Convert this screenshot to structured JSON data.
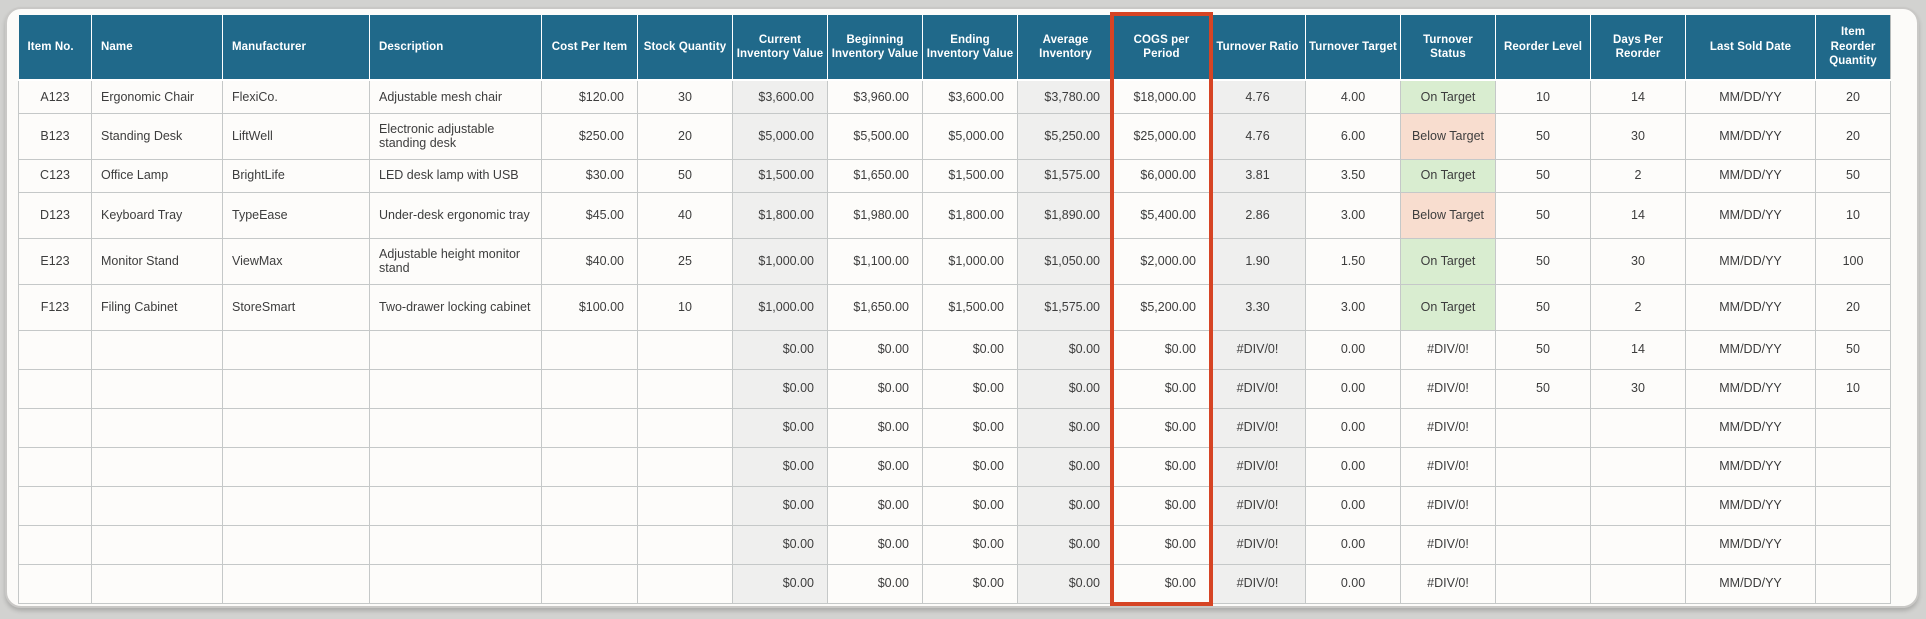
{
  "colors": {
    "header_background": "#20698a",
    "highlight_border": "#d64424",
    "on_target_fill": "#d9edd0",
    "below_target_fill": "#f8ddcf",
    "striped_column_fill": "#efefee"
  },
  "table": {
    "highlighted_column": "COGS per Period",
    "columns": [
      {
        "id": "item-no",
        "label": "Item No."
      },
      {
        "id": "name",
        "label": "Name"
      },
      {
        "id": "manufacturer",
        "label": "Manufacturer"
      },
      {
        "id": "description",
        "label": "Description"
      },
      {
        "id": "cost-per-item",
        "label": "Cost Per Item"
      },
      {
        "id": "stock-quantity",
        "label": "Stock Quantity"
      },
      {
        "id": "current-inventory-value",
        "label": "Current Inventory Value"
      },
      {
        "id": "beginning-inventory-value",
        "label": "Beginning Inventory Value"
      },
      {
        "id": "ending-inventory-value",
        "label": "Ending Inventory Value"
      },
      {
        "id": "average-inventory",
        "label": "Average Inventory"
      },
      {
        "id": "cogs-per-period",
        "label": "COGS per Period"
      },
      {
        "id": "turnover-ratio",
        "label": "Turnover Ratio"
      },
      {
        "id": "turnover-target",
        "label": "Turnover Target"
      },
      {
        "id": "turnover-status",
        "label": "Turnover Status"
      },
      {
        "id": "reorder-level",
        "label": "Reorder Level"
      },
      {
        "id": "days-per-reorder",
        "label": "Days Per Reorder"
      },
      {
        "id": "last-sold-date",
        "label": "Last Sold Date"
      },
      {
        "id": "item-reorder-quantity",
        "label": "Item Reorder Quantity"
      }
    ],
    "rows": [
      {
        "cells": [
          "A123",
          "Ergonomic Chair",
          "FlexiCo.",
          "Adjustable mesh chair",
          "$120.00",
          "30",
          "$3,600.00",
          "$3,960.00",
          "$3,600.00",
          "$3,780.00",
          "$18,000.00",
          "4.76",
          "4.00",
          "On Target",
          "10",
          "14",
          "MM/DD/YY",
          "20"
        ]
      },
      {
        "cells": [
          "B123",
          "Standing Desk",
          "LiftWell",
          "Electronic adjustable standing desk",
          "$250.00",
          "20",
          "$5,000.00",
          "$5,500.00",
          "$5,000.00",
          "$5,250.00",
          "$25,000.00",
          "4.76",
          "6.00",
          "Below Target",
          "50",
          "30",
          "MM/DD/YY",
          "20"
        ]
      },
      {
        "cells": [
          "C123",
          "Office Lamp",
          "BrightLife",
          "LED desk lamp with USB",
          "$30.00",
          "50",
          "$1,500.00",
          "$1,650.00",
          "$1,500.00",
          "$1,575.00",
          "$6,000.00",
          "3.81",
          "3.50",
          "On Target",
          "50",
          "2",
          "MM/DD/YY",
          "50"
        ]
      },
      {
        "cells": [
          "D123",
          "Keyboard Tray",
          "TypeEase",
          "Under-desk ergonomic tray",
          "$45.00",
          "40",
          "$1,800.00",
          "$1,980.00",
          "$1,800.00",
          "$1,890.00",
          "$5,400.00",
          "2.86",
          "3.00",
          "Below Target",
          "50",
          "14",
          "MM/DD/YY",
          "10"
        ]
      },
      {
        "cells": [
          "E123",
          "Monitor Stand",
          "ViewMax",
          "Adjustable height monitor stand",
          "$40.00",
          "25",
          "$1,000.00",
          "$1,100.00",
          "$1,000.00",
          "$1,050.00",
          "$2,000.00",
          "1.90",
          "1.50",
          "On Target",
          "50",
          "30",
          "MM/DD/YY",
          "100"
        ]
      },
      {
        "cells": [
          "F123",
          "Filing Cabinet",
          "StoreSmart",
          "Two-drawer locking cabinet",
          "$100.00",
          "10",
          "$1,000.00",
          "$1,650.00",
          "$1,500.00",
          "$1,575.00",
          "$5,200.00",
          "3.30",
          "3.00",
          "On Target",
          "50",
          "2",
          "MM/DD/YY",
          "20"
        ]
      },
      {
        "cells": [
          "",
          "",
          "",
          "",
          "",
          "",
          "$0.00",
          "$0.00",
          "$0.00",
          "$0.00",
          "$0.00",
          "#DIV/0!",
          "0.00",
          "#DIV/0!",
          "50",
          "14",
          "MM/DD/YY",
          "50"
        ]
      },
      {
        "cells": [
          "",
          "",
          "",
          "",
          "",
          "",
          "$0.00",
          "$0.00",
          "$0.00",
          "$0.00",
          "$0.00",
          "#DIV/0!",
          "0.00",
          "#DIV/0!",
          "50",
          "30",
          "MM/DD/YY",
          "10"
        ]
      },
      {
        "cells": [
          "",
          "",
          "",
          "",
          "",
          "",
          "$0.00",
          "$0.00",
          "$0.00",
          "$0.00",
          "$0.00",
          "#DIV/0!",
          "0.00",
          "#DIV/0!",
          "",
          "",
          "MM/DD/YY",
          ""
        ]
      },
      {
        "cells": [
          "",
          "",
          "",
          "",
          "",
          "",
          "$0.00",
          "$0.00",
          "$0.00",
          "$0.00",
          "$0.00",
          "#DIV/0!",
          "0.00",
          "#DIV/0!",
          "",
          "",
          "MM/DD/YY",
          ""
        ]
      },
      {
        "cells": [
          "",
          "",
          "",
          "",
          "",
          "",
          "$0.00",
          "$0.00",
          "$0.00",
          "$0.00",
          "$0.00",
          "#DIV/0!",
          "0.00",
          "#DIV/0!",
          "",
          "",
          "MM/DD/YY",
          ""
        ]
      },
      {
        "cells": [
          "",
          "",
          "",
          "",
          "",
          "",
          "$0.00",
          "$0.00",
          "$0.00",
          "$0.00",
          "$0.00",
          "#DIV/0!",
          "0.00",
          "#DIV/0!",
          "",
          "",
          "MM/DD/YY",
          ""
        ]
      },
      {
        "cells": [
          "",
          "",
          "",
          "",
          "",
          "",
          "$0.00",
          "$0.00",
          "$0.00",
          "$0.00",
          "$0.00",
          "#DIV/0!",
          "0.00",
          "#DIV/0!",
          "",
          "",
          "MM/DD/YY",
          ""
        ]
      }
    ]
  }
}
